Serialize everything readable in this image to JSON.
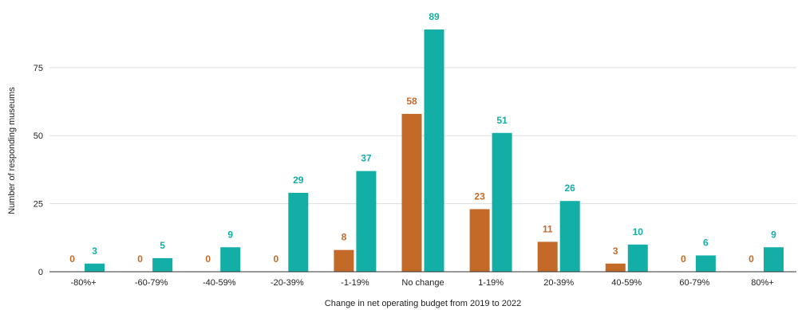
{
  "chart_data": {
    "type": "bar",
    "title": "",
    "xlabel": "Change in net operating budget from 2019 to 2022",
    "ylabel": "Number of responding museums",
    "categories": [
      "-80%+",
      "-60-79%",
      "-40-59%",
      "-20-39%",
      "-1-19%",
      "No change",
      "1-19%",
      "20-39%",
      "40-59%",
      "60-79%",
      "80%+"
    ],
    "series": [
      {
        "values": [
          0,
          0,
          0,
          0,
          8,
          58,
          23,
          11,
          3,
          0,
          0
        ],
        "color": "#c46a29"
      },
      {
        "values": [
          3,
          5,
          9,
          29,
          37,
          89,
          51,
          26,
          10,
          6,
          9
        ],
        "color": "#13aea6"
      }
    ],
    "ylim": [
      0,
      89
    ],
    "yticks": [
      0,
      25,
      50,
      75
    ],
    "grid": true,
    "gridline_color": "#dddddd",
    "legend": "none"
  }
}
